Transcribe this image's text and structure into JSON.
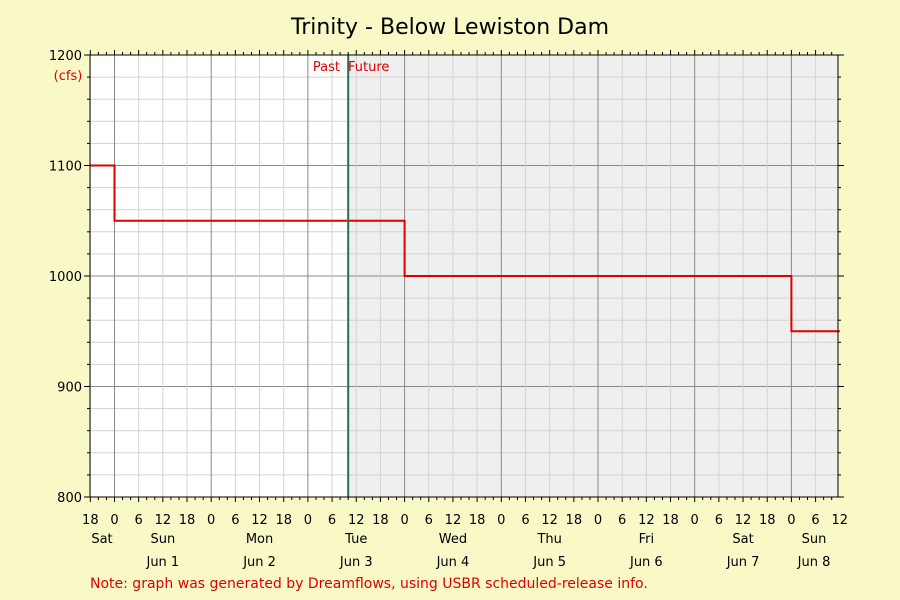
{
  "chart_data": {
    "type": "line",
    "title": "Trinity - Below Lewiston Dam",
    "ylabel": "(cfs)",
    "ylim": [
      800,
      1200
    ],
    "y_ticks": [
      "800",
      "900",
      "1000",
      "1100",
      "1200"
    ],
    "x_hour_ticks": [
      "18",
      "0",
      "6",
      "12",
      "18",
      "0",
      "6",
      "12",
      "18",
      "0",
      "6",
      "12",
      "18",
      "0",
      "6",
      "12",
      "18",
      "0",
      "6",
      "12",
      "18",
      "0",
      "6",
      "12",
      "18",
      "0",
      "6",
      "12",
      "18",
      "0",
      "6",
      "12"
    ],
    "day_labels": [
      {
        "weekday": "Sat",
        "date": ""
      },
      {
        "weekday": "Sun",
        "date": "Jun 1"
      },
      {
        "weekday": "Mon",
        "date": "Jun 2"
      },
      {
        "weekday": "Tue",
        "date": "Jun 3"
      },
      {
        "weekday": "Wed",
        "date": "Jun 4"
      },
      {
        "weekday": "Thu",
        "date": "Jun 5"
      },
      {
        "weekday": "Fri",
        "date": "Jun 6"
      },
      {
        "weekday": "Sat",
        "date": "Jun 7"
      },
      {
        "weekday": "Sun",
        "date": "Jun 8"
      }
    ],
    "past_label": "Past",
    "future_label": "Future",
    "series": [
      {
        "values": [
          {
            "t": "Sat 18:00",
            "y": 1100
          },
          {
            "t": "Sun Jun 1 00:00",
            "y": 1100
          },
          {
            "t": "Sun Jun 1 00:00",
            "y": 1050
          },
          {
            "t": "Wed Jun 4 00:00",
            "y": 1050
          },
          {
            "t": "Wed Jun 4 00:00",
            "y": 1000
          },
          {
            "t": "Sun Jun 8 00:00",
            "y": 1000
          },
          {
            "t": "Sun Jun 8 00:00",
            "y": 950
          },
          {
            "t": "Sun Jun 8 12:00",
            "y": 950
          }
        ]
      }
    ],
    "now": "Tue Jun 3 10:00",
    "grid": true,
    "colors": {
      "line": "#dd0000",
      "now_line": "#2e6b52",
      "future_bg": "#efefef",
      "past_bg": "#ffffff",
      "page_bg": "#f9f9c8",
      "note": "#dd0000"
    }
  },
  "note": "Note: graph was generated by Dreamflows, using USBR scheduled-release info."
}
